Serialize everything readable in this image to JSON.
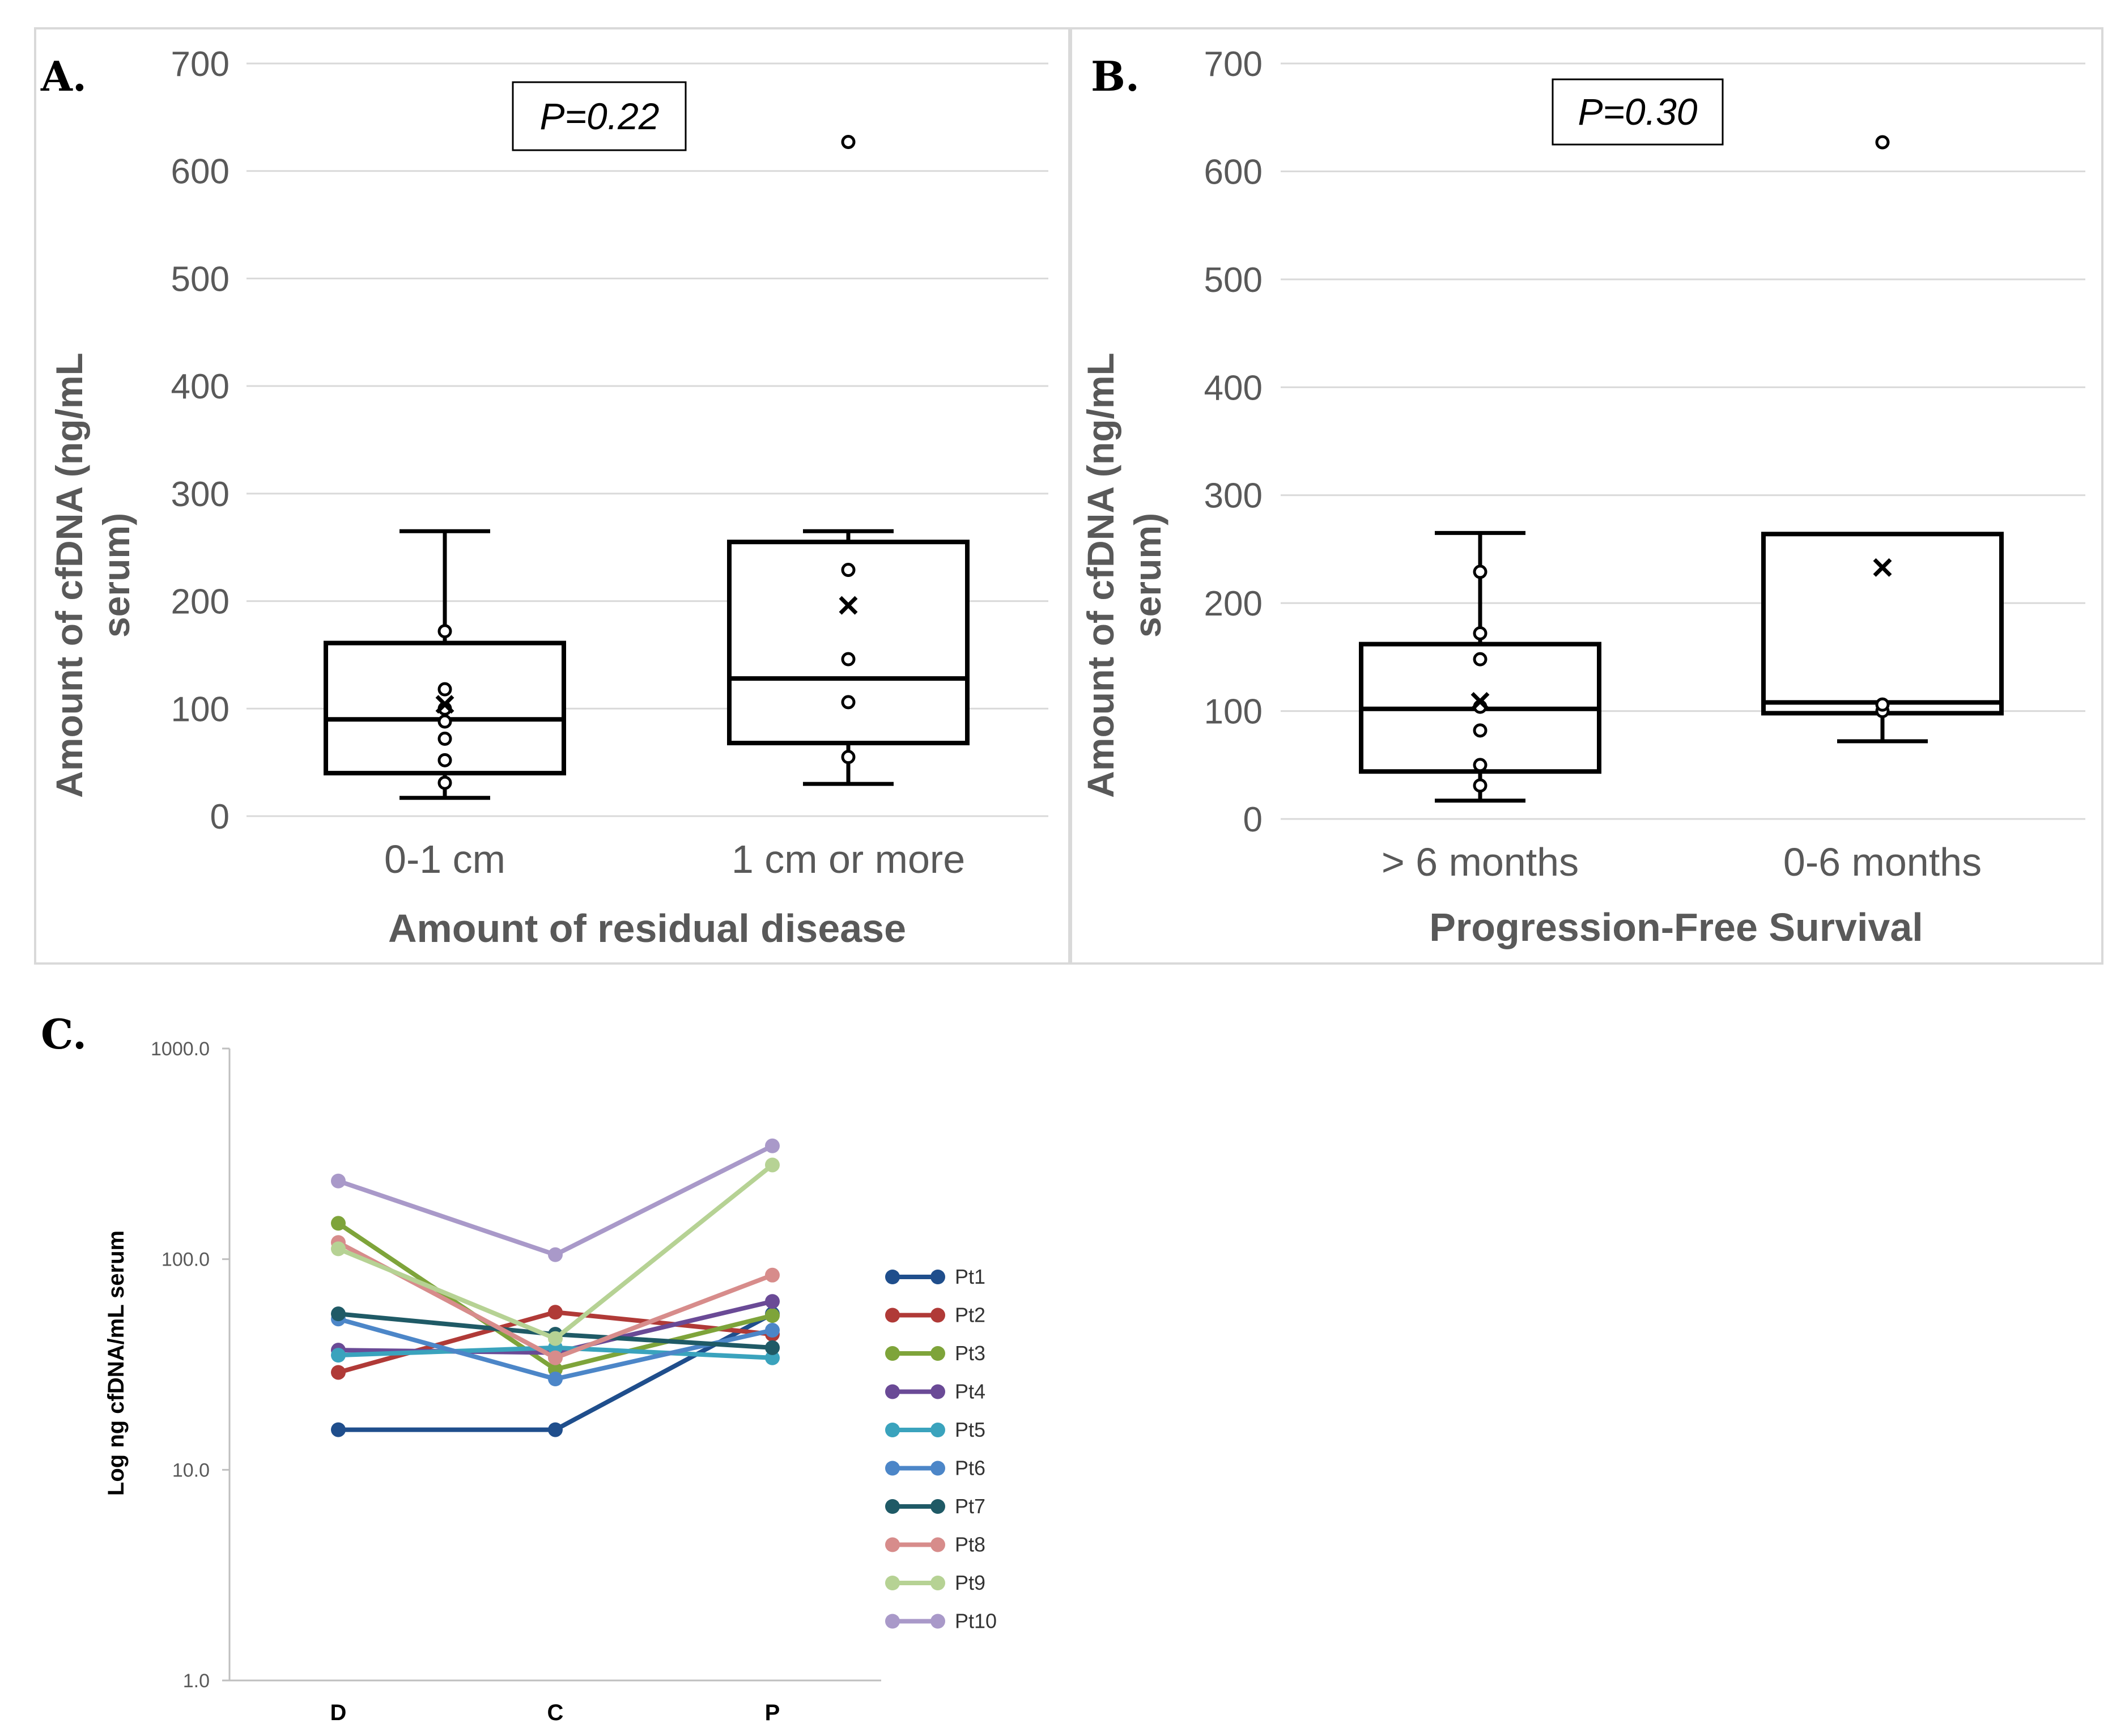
{
  "panels": {
    "a": {
      "letter": "A."
    },
    "b": {
      "letter": "B."
    },
    "c": {
      "letter": "C."
    }
  },
  "chart_data": [
    {
      "panel": "A.",
      "type": "box",
      "ylabel_line1": "Amount of cfDNA (ng/mL",
      "ylabel_line2": "serum)",
      "xlabel": "Amount of residual disease",
      "ylim": [
        0,
        700
      ],
      "yticks": [
        "0",
        "100",
        "200",
        "300",
        "400",
        "500",
        "600",
        "700"
      ],
      "annotation": "P=0.22",
      "grid": true,
      "categories": [
        {
          "label": "0-1 cm",
          "whisker_low": 17,
          "q1": 40,
          "median": 90,
          "q3": 161,
          "whisker_high": 265,
          "mean": 104,
          "points": [
            31,
            52,
            72,
            88,
            100,
            118,
            172
          ],
          "outliers": []
        },
        {
          "label": "1 cm or more",
          "whisker_low": 30,
          "q1": 68,
          "median": 128,
          "q3": 255,
          "whisker_high": 265,
          "mean": 196,
          "points": [
            55,
            106,
            146,
            229
          ],
          "outliers": [
            627
          ]
        }
      ]
    },
    {
      "panel": "B.",
      "type": "box",
      "ylabel_line1": "Amount of cfDNA (ng/mL",
      "ylabel_line2": "serum)",
      "xlabel": "Progression-Free Survival",
      "ylim": [
        0,
        700
      ],
      "yticks": [
        "0",
        "100",
        "200",
        "300",
        "400",
        "500",
        "600",
        "700"
      ],
      "annotation": "P=0.30",
      "grid": true,
      "categories": [
        {
          "label": "> 6 months",
          "whisker_low": 17,
          "q1": 44,
          "median": 102,
          "q3": 162,
          "whisker_high": 265,
          "mean": 109,
          "points": [
            31,
            50,
            82,
            104,
            148,
            172,
            229
          ],
          "outliers": []
        },
        {
          "label": "0-6 months",
          "whisker_low": 72,
          "q1": 98,
          "median": 108,
          "q3": 264,
          "whisker_high": 264,
          "mean": 233,
          "points": [
            100,
            106
          ],
          "outliers": [
            627
          ]
        }
      ]
    },
    {
      "panel": "C.",
      "type": "line",
      "scale": "log",
      "ylabel": "Log ng cfDNA/mL serum",
      "ylim": [
        1,
        1000
      ],
      "yticks": [
        "1.0",
        "10.0",
        "100.0",
        "1000.0"
      ],
      "categories": [
        "D",
        "C",
        "P"
      ],
      "legend_position": "right",
      "series": [
        {
          "name": "Pt1",
          "color": "#1f4e8c",
          "values": [
            15.5,
            15.5,
            55
          ]
        },
        {
          "name": "Pt2",
          "color": "#b03a37",
          "values": [
            29,
            56,
            44
          ]
        },
        {
          "name": "Pt3",
          "color": "#7ea43a",
          "values": [
            148,
            30,
            54
          ]
        },
        {
          "name": "Pt4",
          "color": "#6a4a96",
          "values": [
            37,
            36,
            63
          ]
        },
        {
          "name": "Pt5",
          "color": "#3aa3bd",
          "values": [
            35,
            38,
            34
          ]
        },
        {
          "name": "Pt6",
          "color": "#4c86c8",
          "values": [
            52,
            27,
            46
          ]
        },
        {
          "name": "Pt7",
          "color": "#1f5a66",
          "values": [
            55,
            44,
            38
          ]
        },
        {
          "name": "Pt8",
          "color": "#d78c8b",
          "values": [
            120,
            34,
            84
          ]
        },
        {
          "name": "Pt9",
          "color": "#b6d294",
          "values": [
            112,
            42,
            280
          ]
        },
        {
          "name": "Pt10",
          "color": "#a999c9",
          "values": [
            235,
            105,
            345
          ]
        }
      ]
    }
  ]
}
